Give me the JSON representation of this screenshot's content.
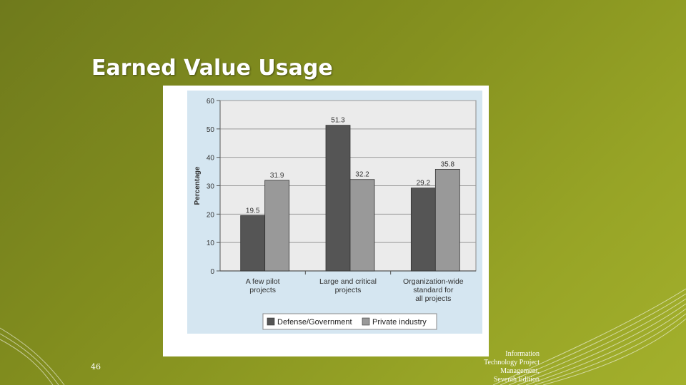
{
  "slide": {
    "title": "Earned Value Usage",
    "slide_number": "46",
    "source_lines": [
      "Information",
      "Technology Project",
      "Management,",
      "Seventh Edition"
    ]
  },
  "colors": {
    "defense": "#555555",
    "private": "#999999",
    "panel": "#d5e6f1",
    "plot_area": "#ebebeb"
  },
  "chart_data": {
    "type": "bar",
    "title": "",
    "xlabel": "",
    "ylabel": "Percentage",
    "ylim": [
      0,
      60
    ],
    "yticks": [
      0,
      10,
      20,
      30,
      40,
      50,
      60
    ],
    "grid": true,
    "legend_position": "bottom",
    "categories": [
      [
        "A few pilot",
        "projects"
      ],
      [
        "Large and critical",
        "projects"
      ],
      [
        "Organization-wide",
        "standard for",
        "all projects"
      ]
    ],
    "series": [
      {
        "name": "Defense/Government",
        "values": [
          19.5,
          51.3,
          29.2
        ],
        "labels": [
          "19.5",
          "51.3",
          "29.2"
        ]
      },
      {
        "name": "Private industry",
        "values": [
          31.9,
          32.2,
          35.8
        ],
        "labels": [
          "31.9",
          "32.2",
          "35.8"
        ]
      }
    ]
  }
}
